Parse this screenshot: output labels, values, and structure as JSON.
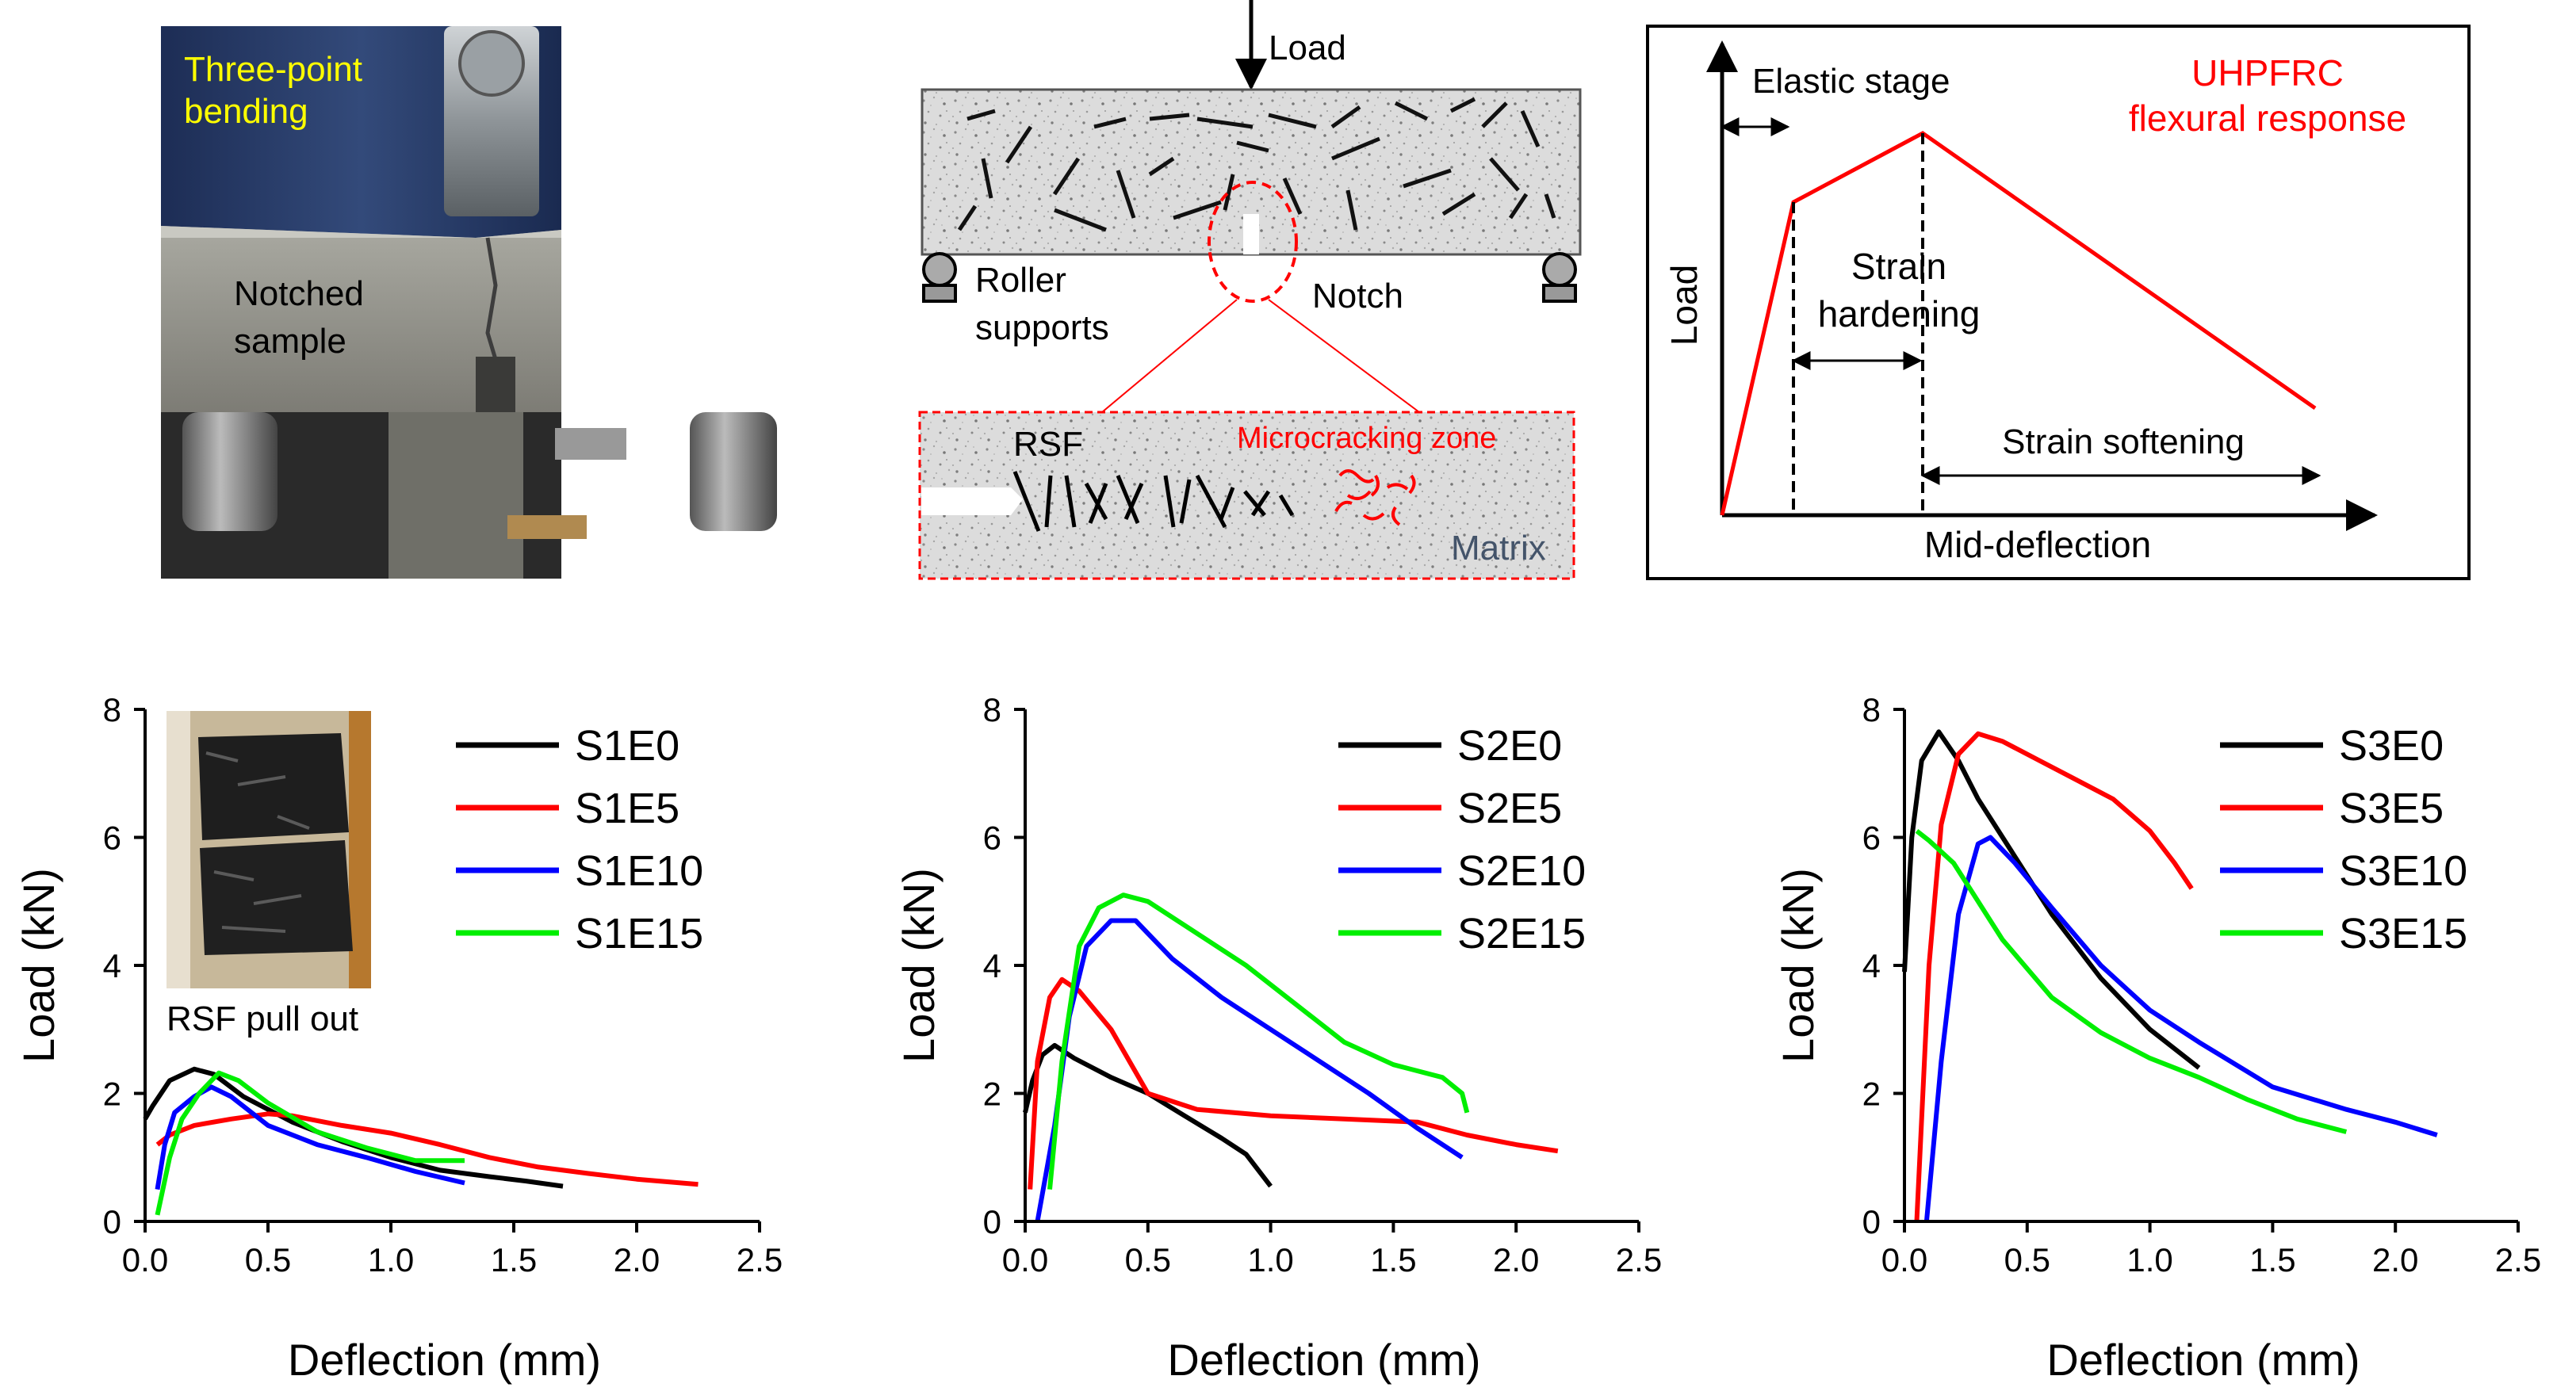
{
  "photo": {
    "title_line1": "Three-point",
    "title_line2": "bending",
    "sample_line1": "Notched",
    "sample_line2": "sample"
  },
  "schematic": {
    "load_label": "Load",
    "roller_line1": "Roller",
    "roller_line2": "supports",
    "notch_label": "Notch",
    "rsf_label": "RSF",
    "microcracking_label": "Microcracking zone",
    "matrix_label": "Matrix"
  },
  "response": {
    "elastic_label": "Elastic stage",
    "title_line1": "UHPFRC",
    "title_line2": "flexural response",
    "hardening_line1": "Strain",
    "hardening_line2": "hardening",
    "softening_label": "Strain softening",
    "ylabel": "Load",
    "xlabel": "Mid-deflection"
  },
  "inset": {
    "caption": "RSF pull out"
  },
  "colors": {
    "E0": "#000000",
    "E5": "#ff0000",
    "E10": "#0000ff",
    "E15": "#00ee00",
    "title_yellow": "#ffff00",
    "accent_red": "#ff0000",
    "matrix_blue": "#44546a"
  },
  "chart_data": [
    {
      "type": "line",
      "title": "",
      "xlabel": "Deflection (mm)",
      "ylabel": "Load (kN)",
      "xlim": [
        0,
        2.5
      ],
      "ylim": [
        0,
        8
      ],
      "xticks": [
        "0.0",
        "0.5",
        "1.0",
        "1.5",
        "2.0",
        "2.5"
      ],
      "yticks": [
        "0",
        "2",
        "4",
        "6",
        "8"
      ],
      "series": [
        {
          "name": "S1E0",
          "key": "E0",
          "points": [
            [
              0,
              1.6
            ],
            [
              0.03,
              1.8
            ],
            [
              0.1,
              2.2
            ],
            [
              0.2,
              2.38
            ],
            [
              0.28,
              2.3
            ],
            [
              0.4,
              1.95
            ],
            [
              0.6,
              1.55
            ],
            [
              0.8,
              1.25
            ],
            [
              1.0,
              1.0
            ],
            [
              1.2,
              0.8
            ],
            [
              1.4,
              0.7
            ],
            [
              1.55,
              0.63
            ],
            [
              1.7,
              0.55
            ]
          ]
        },
        {
          "name": "S1E5",
          "key": "E5",
          "points": [
            [
              0.05,
              1.2
            ],
            [
              0.1,
              1.35
            ],
            [
              0.2,
              1.5
            ],
            [
              0.35,
              1.6
            ],
            [
              0.5,
              1.68
            ],
            [
              0.6,
              1.65
            ],
            [
              0.8,
              1.5
            ],
            [
              1.0,
              1.38
            ],
            [
              1.2,
              1.2
            ],
            [
              1.4,
              1.0
            ],
            [
              1.6,
              0.85
            ],
            [
              1.8,
              0.75
            ],
            [
              2.0,
              0.66
            ],
            [
              2.25,
              0.58
            ]
          ]
        },
        {
          "name": "S1E10",
          "key": "E10",
          "points": [
            [
              0.05,
              0.5
            ],
            [
              0.08,
              1.2
            ],
            [
              0.12,
              1.7
            ],
            [
              0.2,
              1.95
            ],
            [
              0.27,
              2.1
            ],
            [
              0.35,
              1.95
            ],
            [
              0.5,
              1.5
            ],
            [
              0.7,
              1.2
            ],
            [
              0.9,
              1.0
            ],
            [
              1.1,
              0.78
            ],
            [
              1.3,
              0.6
            ]
          ]
        },
        {
          "name": "S1E15",
          "key": "E15",
          "points": [
            [
              0.05,
              0.1
            ],
            [
              0.1,
              1.0
            ],
            [
              0.15,
              1.6
            ],
            [
              0.22,
              2.0
            ],
            [
              0.3,
              2.32
            ],
            [
              0.38,
              2.2
            ],
            [
              0.5,
              1.85
            ],
            [
              0.7,
              1.4
            ],
            [
              0.9,
              1.15
            ],
            [
              1.1,
              0.95
            ],
            [
              1.3,
              0.95
            ]
          ]
        }
      ]
    },
    {
      "type": "line",
      "title": "",
      "xlabel": "Deflection (mm)",
      "ylabel": "Load (kN)",
      "xlim": [
        0,
        2.5
      ],
      "ylim": [
        0,
        8
      ],
      "xticks": [
        "0.0",
        "0.5",
        "1.0",
        "1.5",
        "2.0",
        "2.5"
      ],
      "yticks": [
        "0",
        "2",
        "4",
        "6",
        "8"
      ],
      "series": [
        {
          "name": "S2E0",
          "key": "E0",
          "points": [
            [
              0,
              1.7
            ],
            [
              0.03,
              2.2
            ],
            [
              0.07,
              2.6
            ],
            [
              0.12,
              2.75
            ],
            [
              0.2,
              2.55
            ],
            [
              0.35,
              2.25
            ],
            [
              0.5,
              2.0
            ],
            [
              0.65,
              1.65
            ],
            [
              0.8,
              1.3
            ],
            [
              0.9,
              1.05
            ],
            [
              1.0,
              0.55
            ]
          ]
        },
        {
          "name": "S2E5",
          "key": "E5",
          "points": [
            [
              0.02,
              0.5
            ],
            [
              0.05,
              2.5
            ],
            [
              0.1,
              3.5
            ],
            [
              0.15,
              3.78
            ],
            [
              0.22,
              3.6
            ],
            [
              0.35,
              3.0
            ],
            [
              0.5,
              2.0
            ],
            [
              0.7,
              1.75
            ],
            [
              1.0,
              1.65
            ],
            [
              1.3,
              1.6
            ],
            [
              1.6,
              1.55
            ],
            [
              1.8,
              1.35
            ],
            [
              2.0,
              1.2
            ],
            [
              2.17,
              1.1
            ]
          ]
        },
        {
          "name": "S2E10",
          "key": "E10",
          "points": [
            [
              0.05,
              0
            ],
            [
              0.12,
              1.5
            ],
            [
              0.18,
              3.2
            ],
            [
              0.25,
              4.3
            ],
            [
              0.35,
              4.7
            ],
            [
              0.45,
              4.7
            ],
            [
              0.6,
              4.1
            ],
            [
              0.8,
              3.5
            ],
            [
              1.0,
              3.0
            ],
            [
              1.2,
              2.5
            ],
            [
              1.4,
              2.0
            ],
            [
              1.6,
              1.45
            ],
            [
              1.78,
              1.0
            ]
          ]
        },
        {
          "name": "S2E15",
          "key": "E15",
          "points": [
            [
              0.1,
              0.5
            ],
            [
              0.15,
              2.5
            ],
            [
              0.22,
              4.3
            ],
            [
              0.3,
              4.9
            ],
            [
              0.4,
              5.1
            ],
            [
              0.5,
              5.0
            ],
            [
              0.7,
              4.5
            ],
            [
              0.9,
              4.0
            ],
            [
              1.1,
              3.4
            ],
            [
              1.3,
              2.8
            ],
            [
              1.5,
              2.45
            ],
            [
              1.7,
              2.25
            ],
            [
              1.78,
              2.0
            ],
            [
              1.8,
              1.7
            ]
          ]
        }
      ]
    },
    {
      "type": "line",
      "title": "",
      "xlabel": "Deflection (mm)",
      "ylabel": "Load (kN)",
      "xlim": [
        0,
        2.5
      ],
      "ylim": [
        0,
        8
      ],
      "xticks": [
        "0.0",
        "0.5",
        "1.0",
        "1.5",
        "2.0",
        "2.5"
      ],
      "yticks": [
        "0",
        "2",
        "4",
        "6",
        "8"
      ],
      "series": [
        {
          "name": "S3E0",
          "key": "E0",
          "points": [
            [
              0.0,
              3.9
            ],
            [
              0.03,
              6.0
            ],
            [
              0.07,
              7.2
            ],
            [
              0.14,
              7.65
            ],
            [
              0.22,
              7.2
            ],
            [
              0.3,
              6.6
            ],
            [
              0.45,
              5.7
            ],
            [
              0.6,
              4.8
            ],
            [
              0.8,
              3.8
            ],
            [
              1.0,
              3.0
            ],
            [
              1.2,
              2.4
            ]
          ]
        },
        {
          "name": "S3E5",
          "key": "E5",
          "points": [
            [
              0.05,
              0
            ],
            [
              0.1,
              4.0
            ],
            [
              0.15,
              6.2
            ],
            [
              0.22,
              7.3
            ],
            [
              0.3,
              7.62
            ],
            [
              0.4,
              7.5
            ],
            [
              0.55,
              7.2
            ],
            [
              0.7,
              6.9
            ],
            [
              0.85,
              6.6
            ],
            [
              1.0,
              6.1
            ],
            [
              1.1,
              5.6
            ],
            [
              1.17,
              5.2
            ]
          ]
        },
        {
          "name": "S3E10",
          "key": "E10",
          "points": [
            [
              0.09,
              0
            ],
            [
              0.15,
              2.5
            ],
            [
              0.22,
              4.8
            ],
            [
              0.3,
              5.9
            ],
            [
              0.35,
              6.0
            ],
            [
              0.45,
              5.6
            ],
            [
              0.6,
              4.9
            ],
            [
              0.8,
              4.0
            ],
            [
              1.0,
              3.3
            ],
            [
              1.2,
              2.8
            ],
            [
              1.5,
              2.1
            ],
            [
              1.8,
              1.75
            ],
            [
              2.0,
              1.55
            ],
            [
              2.17,
              1.35
            ]
          ]
        },
        {
          "name": "S3E15",
          "key": "E15",
          "points": [
            [
              0.05,
              6.1
            ],
            [
              0.1,
              5.95
            ],
            [
              0.2,
              5.6
            ],
            [
              0.3,
              5.0
            ],
            [
              0.4,
              4.4
            ],
            [
              0.6,
              3.5
            ],
            [
              0.8,
              2.95
            ],
            [
              1.0,
              2.55
            ],
            [
              1.2,
              2.25
            ],
            [
              1.4,
              1.9
            ],
            [
              1.6,
              1.6
            ],
            [
              1.8,
              1.4
            ]
          ]
        }
      ]
    }
  ]
}
